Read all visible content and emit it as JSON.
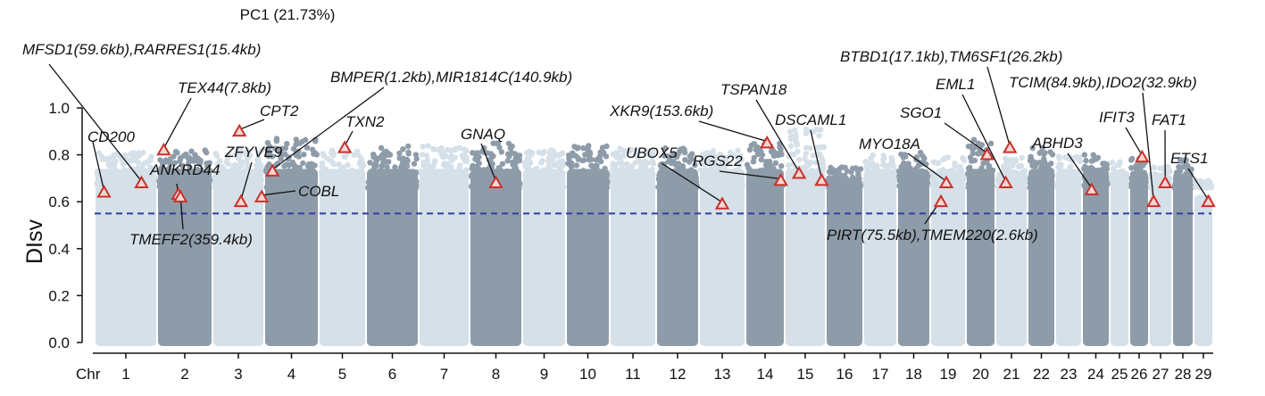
{
  "chart_data": {
    "type": "scatter",
    "subtype": "manhattan",
    "title": "PC1 (21.73%)",
    "xlabel_prefix": "Chr",
    "ylabel": "DIsv",
    "ylim": [
      0,
      1.0
    ],
    "yticks": [
      "0.0",
      "0.2",
      "0.4",
      "0.6",
      "0.8",
      "1.0"
    ],
    "threshold": 0.55,
    "colors": {
      "light": "#d5e0e8",
      "dark": "#8e9caa",
      "threshold": "#2f3f9e",
      "marker": "#c8312b"
    },
    "chromosomes": [
      {
        "label": "1",
        "max": 0.81
      },
      {
        "label": "2",
        "max": 0.82
      },
      {
        "label": "3",
        "max": 0.83
      },
      {
        "label": "4",
        "max": 0.88
      },
      {
        "label": "5",
        "max": 0.82
      },
      {
        "label": "6",
        "max": 0.84
      },
      {
        "label": "7",
        "max": 0.84
      },
      {
        "label": "8",
        "max": 0.85
      },
      {
        "label": "9",
        "max": 0.82
      },
      {
        "label": "10",
        "max": 0.84
      },
      {
        "label": "11",
        "max": 0.83
      },
      {
        "label": "12",
        "max": 0.83
      },
      {
        "label": "13",
        "max": 0.82
      },
      {
        "label": "14",
        "max": 0.86
      },
      {
        "label": "15",
        "max": 0.91
      },
      {
        "label": "16",
        "max": 0.75
      },
      {
        "label": "17",
        "max": 0.8
      },
      {
        "label": "18",
        "max": 0.81
      },
      {
        "label": "19",
        "max": 0.79
      },
      {
        "label": "20",
        "max": 0.87
      },
      {
        "label": "21",
        "max": 0.79
      },
      {
        "label": "22",
        "max": 0.83
      },
      {
        "label": "23",
        "max": 0.8
      },
      {
        "label": "24",
        "max": 0.8
      },
      {
        "label": "25",
        "max": 0.77
      },
      {
        "label": "26",
        "max": 0.79
      },
      {
        "label": "27",
        "max": 0.76
      },
      {
        "label": "28",
        "max": 0.78
      },
      {
        "label": "29",
        "max": 0.69
      }
    ],
    "annotations": [
      {
        "label": "CD200",
        "chr": 1,
        "pos": 0.15,
        "y": 0.64
      },
      {
        "label": "MFSD1(59.6kb),RARRES1(15.4kb)",
        "chr": 1,
        "pos": 0.75,
        "y": 0.68
      },
      {
        "label": "TEX44(7.8kb)",
        "chr": 2,
        "pos": 0.12,
        "y": 0.82
      },
      {
        "label": "ANKRD44",
        "chr": 2,
        "pos": 0.38,
        "y": 0.63
      },
      {
        "label": "TMEFF2(359.4kb)",
        "chr": 2,
        "pos": 0.42,
        "y": 0.62
      },
      {
        "label": "CPT2",
        "chr": 3,
        "pos": 0.52,
        "y": 0.9
      },
      {
        "label": "ZFYVE9",
        "chr": 3,
        "pos": 0.55,
        "y": 0.6
      },
      {
        "label": "COBL",
        "chr": 3,
        "pos": 0.95,
        "y": 0.62
      },
      {
        "label": "BMPER(1.2kb),MIR1814C(140.9kb)",
        "chr": 4,
        "pos": 0.15,
        "y": 0.73
      },
      {
        "label": "TXN2",
        "chr": 5,
        "pos": 0.55,
        "y": 0.83
      },
      {
        "label": "GNAQ",
        "chr": 8,
        "pos": 0.5,
        "y": 0.68
      },
      {
        "label": "UBOX5",
        "chr": 13,
        "pos": 0.5,
        "y": 0.59
      },
      {
        "label": "XKR9(153.6kb)",
        "chr": 14,
        "pos": 0.55,
        "y": 0.85
      },
      {
        "label": "RGS22",
        "chr": 14,
        "pos": 0.9,
        "y": 0.69
      },
      {
        "label": "TSPAN18",
        "chr": 15,
        "pos": 0.35,
        "y": 0.72
      },
      {
        "label": "DSCAML1",
        "chr": 15,
        "pos": 0.9,
        "y": 0.69
      },
      {
        "label": "MYO18A",
        "chr": 19,
        "pos": 0.45,
        "y": 0.68
      },
      {
        "label": "PIRT(75.5kb),TMEM220(2.6kb)",
        "chr": 19,
        "pos": 0.3,
        "y": 0.6
      },
      {
        "label": "SGO1",
        "chr": 20,
        "pos": 0.72,
        "y": 0.8
      },
      {
        "label": "EML1",
        "chr": 20,
        "pos": 1.35,
        "y": 0.68
      },
      {
        "label": "BTBD1(17.1kb),TM6SF1(26.2kb)",
        "chr": 21,
        "pos": 0.45,
        "y": 0.83
      },
      {
        "label": "ABHD3",
        "chr": 24,
        "pos": 0.35,
        "y": 0.65
      },
      {
        "label": "IFIT3",
        "chr": 26,
        "pos": 0.65,
        "y": 0.79
      },
      {
        "label": "TCIM(84.9kb),IDO2(32.9kb)",
        "chr": 27,
        "pos": 0.2,
        "y": 0.6
      },
      {
        "label": "FAT1",
        "chr": 27,
        "pos": 0.7,
        "y": 0.68
      },
      {
        "label": "ETS1",
        "chr": 29,
        "pos": 0.75,
        "y": 0.6
      }
    ]
  }
}
